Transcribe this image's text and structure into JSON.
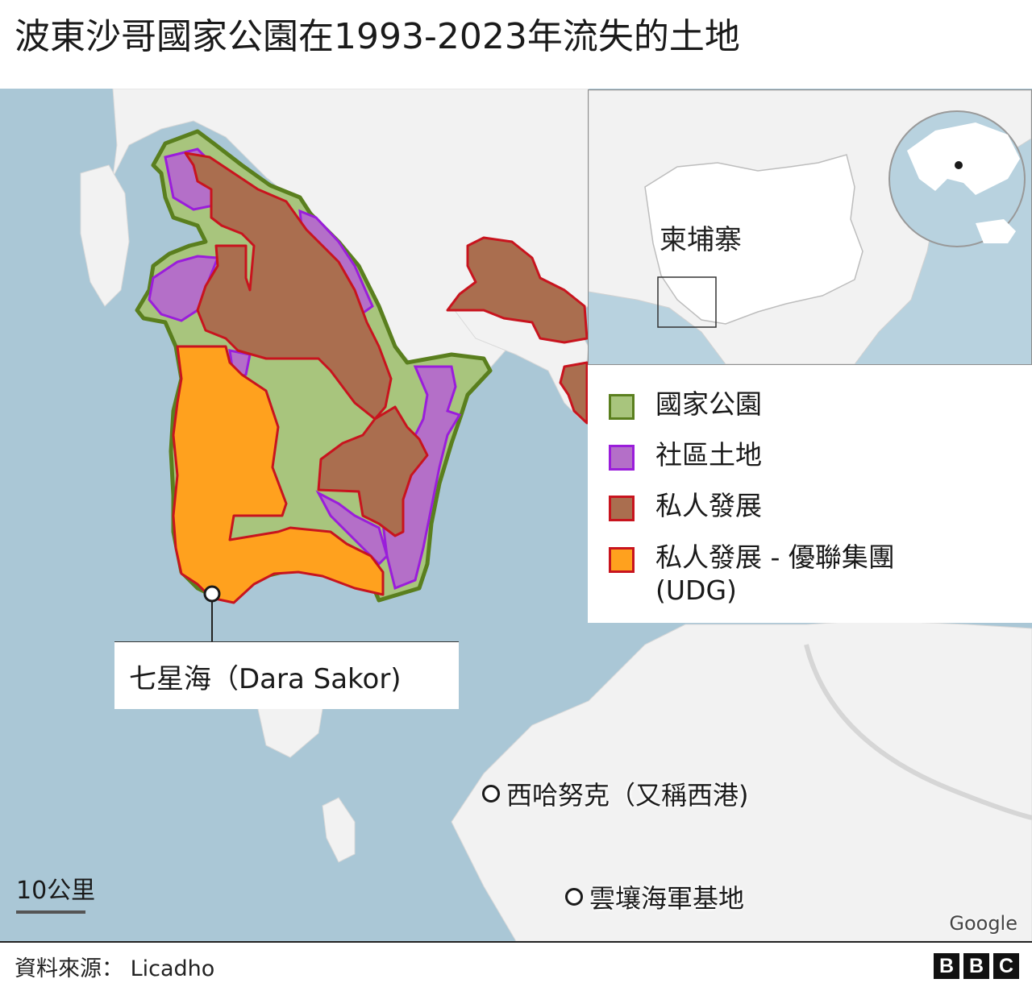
{
  "title": "波東沙哥國家公園在1993-2023年流失的土地",
  "inset": {
    "country_label": "柬埔寨"
  },
  "legend": {
    "items": [
      {
        "label": "國家公園",
        "fill": "#a8c57d",
        "border": "#5a7f1e"
      },
      {
        "label": "社區土地",
        "fill": "#b46fc8",
        "border": "#9a1ddb"
      },
      {
        "label": "私人發展",
        "fill": "#aa6e4f",
        "border": "#c8141e"
      },
      {
        "label": "私人發展 - 優聯集團(UDG)",
        "fill": "#ffa11e",
        "border": "#c8141e"
      }
    ]
  },
  "callout": {
    "label": "七星海（Dara Sakor)"
  },
  "places": {
    "sihanoukville": "西哈努克（又稱西港)",
    "ream": "雲壤海軍基地"
  },
  "scale": {
    "label": "10公里"
  },
  "attribution": "Google",
  "source": "資料來源： Licadho",
  "logo": {
    "letters": [
      "B",
      "B",
      "C"
    ]
  },
  "colors": {
    "sea": "#aac7d6",
    "land": "#f2f2f2",
    "park": "#a8c57d",
    "park_border": "#5a7f1e",
    "community": "#b46fc8",
    "community_border": "#9a1ddb",
    "private": "#aa6e4f",
    "private_border": "#c8141e",
    "udg": "#ffa11e"
  }
}
